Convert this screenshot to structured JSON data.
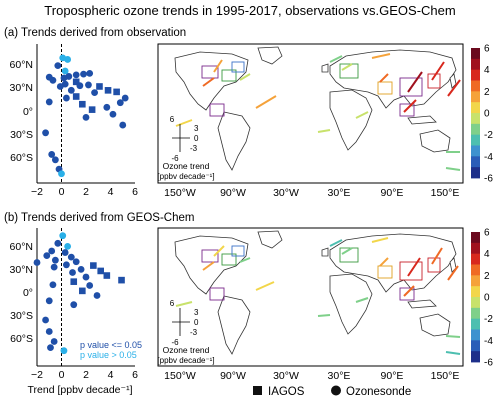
{
  "title": "Tropospheric ozone trends in 1995-2017, observations vs.GEOS-Chem",
  "colors": {
    "significant": "#1f4fa8",
    "not_significant": "#2ab0e8",
    "land_outline": "#333333",
    "box_outline": "#7a2a8c"
  },
  "chart_data": [
    {
      "type": "scatter",
      "panel": "a",
      "panel_label": "(a) Trends derived from observation",
      "xlim": [
        -2,
        6
      ],
      "ylim": [
        -90,
        90
      ],
      "x_ticks": [
        "−2",
        "0",
        "2",
        "4",
        "6"
      ],
      "y_ticks": [
        "60°N",
        "30°N",
        "0°",
        "30°S",
        "60°S"
      ],
      "marker_legend": [
        "IAGOS",
        "Ozonesonde"
      ],
      "points": [
        {
          "x": 0.1,
          "y": 72,
          "sig": false,
          "m": "circle"
        },
        {
          "x": 0.5,
          "y": 70,
          "sig": false,
          "m": "circle"
        },
        {
          "x": -0.3,
          "y": 62,
          "sig": true,
          "m": "circle"
        },
        {
          "x": 0.3,
          "y": 55,
          "sig": false,
          "m": "circle"
        },
        {
          "x": 0.6,
          "y": 48,
          "sig": true,
          "m": "circle"
        },
        {
          "x": 1.2,
          "y": 50,
          "sig": true,
          "m": "circle"
        },
        {
          "x": 1.8,
          "y": 51,
          "sig": true,
          "m": "circle"
        },
        {
          "x": -1.0,
          "y": 47,
          "sig": true,
          "m": "circle"
        },
        {
          "x": -0.7,
          "y": 43,
          "sig": true,
          "m": "circle"
        },
        {
          "x": 0.2,
          "y": 46,
          "sig": true,
          "m": "circle"
        },
        {
          "x": 2.3,
          "y": 52,
          "sig": true,
          "m": "circle"
        },
        {
          "x": 1.2,
          "y": 41,
          "sig": true,
          "m": "square"
        },
        {
          "x": 0.3,
          "y": 38,
          "sig": true,
          "m": "circle"
        },
        {
          "x": 1.5,
          "y": 36,
          "sig": true,
          "m": "circle"
        },
        {
          "x": 2.2,
          "y": 37,
          "sig": true,
          "m": "circle"
        },
        {
          "x": -0.1,
          "y": 35,
          "sig": true,
          "m": "circle"
        },
        {
          "x": 0.8,
          "y": 30,
          "sig": true,
          "m": "circle"
        },
        {
          "x": 3.1,
          "y": 35,
          "sig": true,
          "m": "square"
        },
        {
          "x": 3.8,
          "y": 30,
          "sig": true,
          "m": "square"
        },
        {
          "x": 4.5,
          "y": 28,
          "sig": true,
          "m": "square"
        },
        {
          "x": 2.7,
          "y": 27,
          "sig": true,
          "m": "circle"
        },
        {
          "x": 5.2,
          "y": 20,
          "sig": true,
          "m": "circle"
        },
        {
          "x": 1.2,
          "y": 22,
          "sig": true,
          "m": "square"
        },
        {
          "x": 0.4,
          "y": 20,
          "sig": true,
          "m": "circle"
        },
        {
          "x": -1.0,
          "y": 15,
          "sig": true,
          "m": "circle"
        },
        {
          "x": 1.7,
          "y": 12,
          "sig": true,
          "m": "square"
        },
        {
          "x": 2.5,
          "y": 5,
          "sig": true,
          "m": "square"
        },
        {
          "x": 3.7,
          "y": 8,
          "sig": true,
          "m": "circle"
        },
        {
          "x": 4.8,
          "y": 14,
          "sig": true,
          "m": "circle"
        },
        {
          "x": 2.0,
          "y": -5,
          "sig": true,
          "m": "circle"
        },
        {
          "x": 4.2,
          "y": -1,
          "sig": true,
          "m": "circle"
        },
        {
          "x": 5.0,
          "y": -15,
          "sig": true,
          "m": "circle"
        },
        {
          "x": -1.3,
          "y": -25,
          "sig": true,
          "m": "circle"
        },
        {
          "x": -0.8,
          "y": -53,
          "sig": true,
          "m": "circle"
        },
        {
          "x": -0.5,
          "y": -60,
          "sig": true,
          "m": "circle"
        },
        {
          "x": -0.2,
          "y": -72,
          "sig": true,
          "m": "circle"
        },
        {
          "x": 0.0,
          "y": -78,
          "sig": false,
          "m": "circle"
        }
      ],
      "colorbar": {
        "ticks": [
          "6",
          "4",
          "2",
          "0",
          "-2",
          "-4",
          "-6"
        ],
        "colors": [
          "#6b0a1e",
          "#a0111e",
          "#d8281d",
          "#ef6a24",
          "#f5a23a",
          "#f2d64a",
          "#c8e26b",
          "#7fd08a",
          "#4dbfb0",
          "#3e92cf",
          "#2a5db8",
          "#1d2f8a"
        ]
      },
      "map": {
        "lon_ticks": [
          "150°W",
          "90°W",
          "30°W",
          "30°E",
          "90°E",
          "150°E"
        ],
        "arrow_legend_ticks": [
          "6",
          "3",
          "0",
          "-3",
          "-6"
        ],
        "arrow_legend_label": "Ozone trend",
        "arrow_legend_unit": "[ppbv decade⁻¹]"
      }
    },
    {
      "type": "scatter",
      "panel": "b",
      "panel_label": "(b) Trends derived from GEOS-Chem",
      "xlim": [
        -2,
        6
      ],
      "ylim": [
        -90,
        90
      ],
      "x_ticks": [
        "−2",
        "0",
        "2",
        "4",
        "6"
      ],
      "y_ticks": [
        "60°N",
        "30°N",
        "0°",
        "30°S",
        "60°S"
      ],
      "xlabel": "Trend [ppbv decade⁻¹]",
      "significance_legend": [
        "p value <= 0.05",
        "p value > 0.05"
      ],
      "points": [
        {
          "x": 0.1,
          "y": 80,
          "sig": false,
          "m": "circle"
        },
        {
          "x": -0.3,
          "y": 70,
          "sig": true,
          "m": "circle"
        },
        {
          "x": 0.5,
          "y": 66,
          "sig": false,
          "m": "circle"
        },
        {
          "x": -0.8,
          "y": 60,
          "sig": true,
          "m": "circle"
        },
        {
          "x": 0.3,
          "y": 58,
          "sig": true,
          "m": "circle"
        },
        {
          "x": -1.2,
          "y": 54,
          "sig": true,
          "m": "circle"
        },
        {
          "x": 0.8,
          "y": 52,
          "sig": true,
          "m": "circle"
        },
        {
          "x": -0.5,
          "y": 48,
          "sig": true,
          "m": "circle"
        },
        {
          "x": -2.0,
          "y": 45,
          "sig": true,
          "m": "circle"
        },
        {
          "x": 1.2,
          "y": 46,
          "sig": true,
          "m": "circle"
        },
        {
          "x": 0.4,
          "y": 42,
          "sig": true,
          "m": "circle"
        },
        {
          "x": -0.6,
          "y": 39,
          "sig": true,
          "m": "circle"
        },
        {
          "x": 2.6,
          "y": 41,
          "sig": true,
          "m": "square"
        },
        {
          "x": 1.6,
          "y": 36,
          "sig": true,
          "m": "circle"
        },
        {
          "x": 0.9,
          "y": 32,
          "sig": true,
          "m": "circle"
        },
        {
          "x": 3.2,
          "y": 34,
          "sig": true,
          "m": "square"
        },
        {
          "x": 3.7,
          "y": 28,
          "sig": true,
          "m": "square"
        },
        {
          "x": 2.0,
          "y": 26,
          "sig": true,
          "m": "circle"
        },
        {
          "x": 4.9,
          "y": 22,
          "sig": true,
          "m": "square"
        },
        {
          "x": 1.0,
          "y": 20,
          "sig": true,
          "m": "square"
        },
        {
          "x": -0.7,
          "y": 16,
          "sig": true,
          "m": "circle"
        },
        {
          "x": 2.3,
          "y": 15,
          "sig": true,
          "m": "circle"
        },
        {
          "x": 1.7,
          "y": 8,
          "sig": true,
          "m": "square"
        },
        {
          "x": 2.9,
          "y": 2,
          "sig": true,
          "m": "circle"
        },
        {
          "x": -1.0,
          "y": -5,
          "sig": true,
          "m": "circle"
        },
        {
          "x": 1.0,
          "y": -10,
          "sig": true,
          "m": "circle"
        },
        {
          "x": -1.3,
          "y": -30,
          "sig": true,
          "m": "circle"
        },
        {
          "x": -1.0,
          "y": -45,
          "sig": true,
          "m": "circle"
        },
        {
          "x": -0.6,
          "y": -58,
          "sig": true,
          "m": "circle"
        },
        {
          "x": -0.9,
          "y": -66,
          "sig": true,
          "m": "circle"
        },
        {
          "x": 0.2,
          "y": -70,
          "sig": false,
          "m": "circle"
        }
      ],
      "colorbar": {
        "ticks": [
          "6",
          "4",
          "2",
          "0",
          "-2",
          "-4",
          "-6"
        ],
        "colors": [
          "#6b0a1e",
          "#a0111e",
          "#d8281d",
          "#ef6a24",
          "#f5a23a",
          "#f2d64a",
          "#c8e26b",
          "#7fd08a",
          "#4dbfb0",
          "#3e92cf",
          "#2a5db8",
          "#1d2f8a"
        ]
      },
      "map": {
        "lon_ticks": [
          "150°W",
          "90°W",
          "30°W",
          "30°E",
          "90°E",
          "150°E"
        ],
        "arrow_legend_ticks": [
          "6",
          "3",
          "0",
          "-3",
          "-6"
        ],
        "arrow_legend_label": "Ozone trend",
        "arrow_legend_unit": "[ppbv decade⁻¹]"
      }
    }
  ]
}
